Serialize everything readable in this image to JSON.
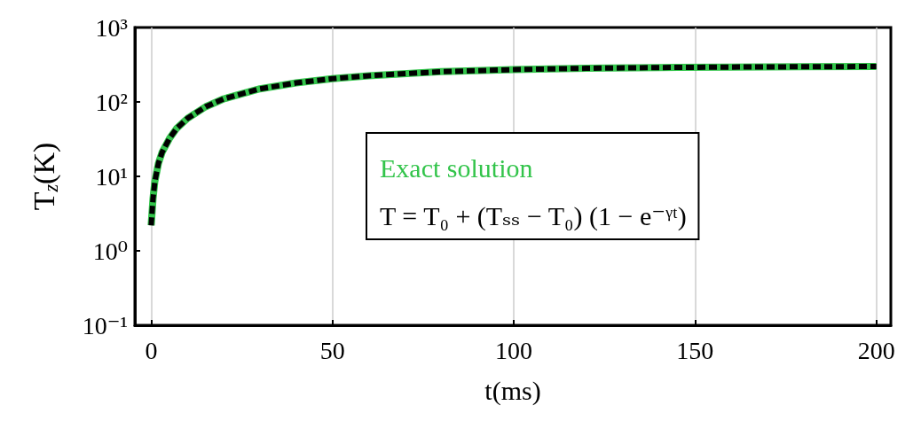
{
  "chart_data": {
    "type": "line",
    "xlabel": "t(ms)",
    "ylabel": "T$_{z}$(K)",
    "log": "y",
    "grid": "x",
    "legend": "right",
    "marker": "none",
    "xlim": [
      -4.5,
      204
    ],
    "xticks": [
      0,
      50,
      100,
      150,
      200
    ],
    "ylim": [
      0.1,
      1000
    ],
    "yticks": [
      {
        "value": 0.1,
        "label": "10⁻¹"
      },
      {
        "value": 1,
        "label": "10⁰"
      },
      {
        "value": 10,
        "label": "10¹"
      },
      {
        "value": 100,
        "label": "10²"
      },
      {
        "value": 1000,
        "label": "10³"
      }
    ],
    "x": [
      0,
      0.5,
      1,
      2,
      3,
      5,
      7,
      10,
      15,
      20,
      30,
      40,
      50,
      60,
      80,
      100,
      120,
      140,
      160,
      180,
      200
    ],
    "series": [
      {
        "name": "Exact solution",
        "color": "#33c44b",
        "line_style": "solid",
        "values": [
          2.2,
          5,
          8.5,
          15,
          21,
          32,
          44,
          60,
          86,
          110,
          150,
          180,
          205,
          225,
          255,
          272,
          283,
          290,
          294,
          297,
          299
        ]
      },
      {
        "name": "T = T₀ + (Tₛₛ − T₀) (1 − e⁻ᵞᵗ)",
        "color": "#000000",
        "line_style": "dashed",
        "values": [
          2.2,
          5,
          8.5,
          15,
          21,
          32,
          44,
          60,
          86,
          110,
          150,
          180,
          205,
          225,
          255,
          272,
          283,
          290,
          294,
          297,
          299
        ]
      }
    ]
  }
}
